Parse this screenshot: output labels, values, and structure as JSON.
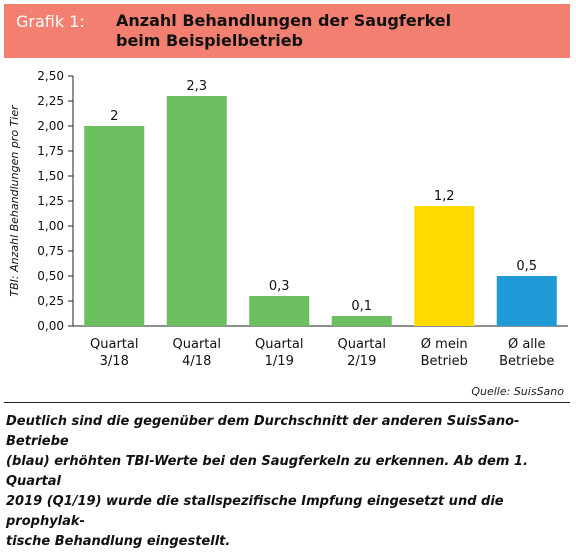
{
  "header": {
    "label": "Grafik 1:",
    "title_line1": "Anzahl Behandlungen der Saugferkel",
    "title_line2": "beim Beispielbetrieb"
  },
  "colors": {
    "header_bg": "#f27f70",
    "green": "#6cc05f",
    "yellow": "#ffda00",
    "blue": "#1f9ad6"
  },
  "chart_data": {
    "type": "bar",
    "title": "Anzahl Behandlungen der Saugferkel beim Beispielbetrieb",
    "ylabel": "TBI: Anzahl Behandlungen pro Tier",
    "xlabel": "",
    "ylim": [
      0,
      2.5
    ],
    "grid": false,
    "yticks": [
      "0,00",
      "0,25",
      "0,50",
      "0,75",
      "1,00",
      "1,25",
      "1,50",
      "1,75",
      "2,00",
      "2,25",
      "2,50"
    ],
    "categories": [
      [
        "Quartal",
        "3/18"
      ],
      [
        "Quartal",
        "4/18"
      ],
      [
        "Quartal",
        "1/19"
      ],
      [
        "Quartal",
        "2/19"
      ],
      [
        "Ø mein",
        "Betrieb"
      ],
      [
        "Ø alle",
        "Betriebe"
      ]
    ],
    "values": [
      2.0,
      2.3,
      0.3,
      0.1,
      1.2,
      0.5
    ],
    "value_labels": [
      "2",
      "2,3",
      "0,3",
      "0,1",
      "1,2",
      "0,5"
    ],
    "bar_colors": [
      "#6cc05f",
      "#6cc05f",
      "#6cc05f",
      "#6cc05f",
      "#ffda00",
      "#1f9ad6"
    ]
  },
  "source": "Quelle: SuisSano",
  "caption": {
    "line1": "Deutlich sind die gegenüber dem Durchschnitt der anderen SuisSano-Betriebe",
    "line2": "(blau) erhöhten TBI-Werte bei den Saugferkeln zu erkennen. Ab dem 1. Quartal",
    "line3": "2019 (Q1/19) wurde die stallspezifische Impfung eingesetzt und die prophylak-",
    "line4": "tische Behandlung eingestellt."
  }
}
